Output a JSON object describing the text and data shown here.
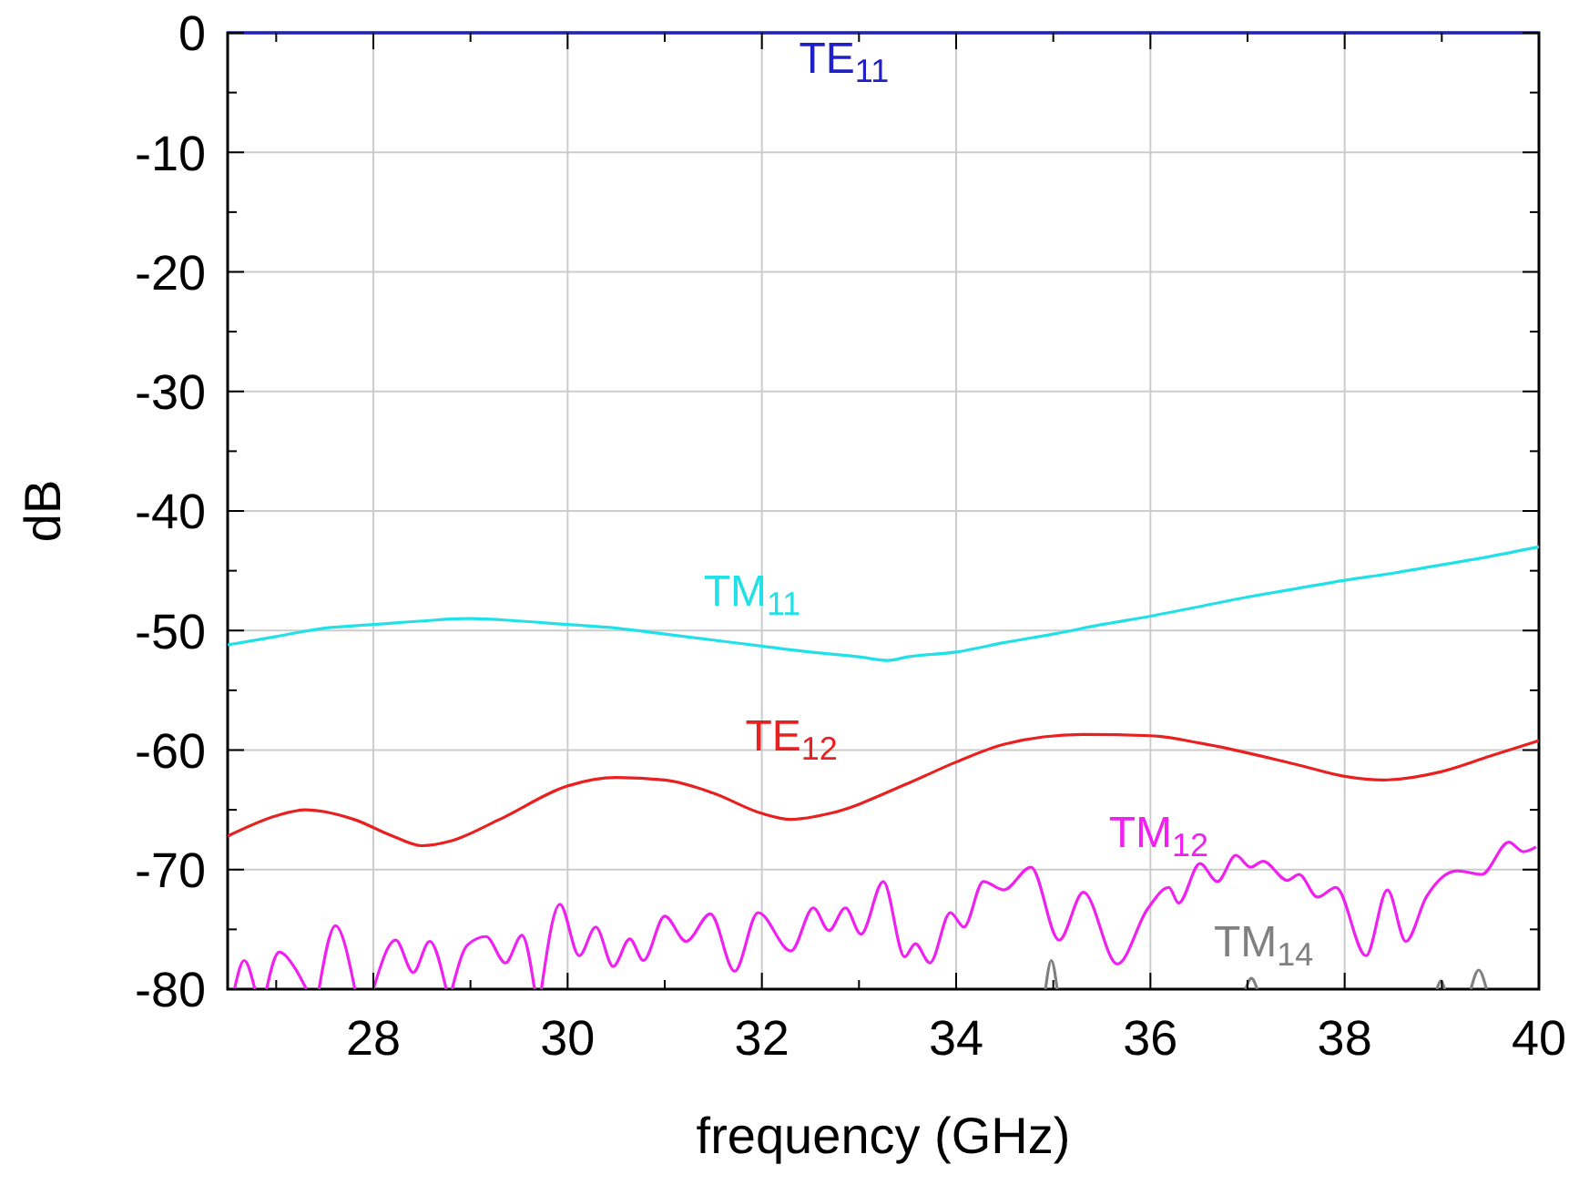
{
  "chart_data": {
    "type": "line",
    "xlabel": "frequency (GHz)",
    "ylabel": "dB",
    "xlim": [
      26.5,
      40
    ],
    "ylim": [
      -80,
      0
    ],
    "xticks": [
      {
        "value": 27,
        "label": null
      },
      28,
      {
        "value": 29,
        "label": null
      },
      30,
      {
        "value": 31,
        "label": null
      },
      32,
      {
        "value": 33,
        "label": null
      },
      34,
      {
        "value": 35,
        "label": null
      },
      36,
      {
        "value": 37,
        "label": null
      },
      38,
      {
        "value": 39,
        "label": null
      },
      40
    ],
    "yticks": [
      -80,
      {
        "value": -75,
        "label": null
      },
      -70,
      {
        "value": -65,
        "label": null
      },
      -60,
      {
        "value": -55,
        "label": null
      },
      -50,
      {
        "value": -45,
        "label": null
      },
      -40,
      {
        "value": -35,
        "label": null
      },
      -30,
      {
        "value": -25,
        "label": null
      },
      -20,
      {
        "value": -15,
        "label": null
      },
      -10,
      {
        "value": -5,
        "label": null
      },
      0
    ],
    "grid": true,
    "marker": "none",
    "line_style": "solid",
    "series": [
      {
        "name": "TE$_{11}$",
        "color": "#2020c8",
        "x": [
          26.5,
          40
        ],
        "values": [
          0,
          0
        ]
      },
      {
        "name": "TM$_{11}$",
        "color": "#20e0e8",
        "x": [
          26.5,
          27,
          27.5,
          28,
          28.5,
          29,
          29.5,
          30,
          30.5,
          31,
          31.5,
          32,
          32.5,
          33,
          33.3,
          33.5,
          34,
          34.5,
          35,
          35.5,
          36,
          36.5,
          37,
          37.5,
          38,
          38.5,
          39,
          39.5,
          40
        ],
        "values": [
          -51.2,
          -50.5,
          -49.8,
          -49.5,
          -49.2,
          -49.0,
          -49.2,
          -49.5,
          -49.8,
          -50.3,
          -50.8,
          -51.3,
          -51.8,
          -52.2,
          -52.5,
          -52.2,
          -51.8,
          -51.0,
          -50.3,
          -49.5,
          -48.8,
          -48.0,
          -47.2,
          -46.5,
          -45.8,
          -45.2,
          -44.5,
          -43.8,
          -43.0
        ]
      },
      {
        "name": "TE$_{12}$",
        "color": "#e82020",
        "x": [
          26.5,
          27,
          27.3,
          27.8,
          28.2,
          28.5,
          28.8,
          29.3,
          30,
          30.5,
          31,
          31.5,
          32,
          32.3,
          32.7,
          33.5,
          34,
          34.5,
          35.3,
          36,
          36.5,
          37.5,
          38,
          38.4,
          39,
          39.5,
          40
        ],
        "values": [
          -67.2,
          -65.5,
          -65.0,
          -65.8,
          -67.2,
          -68.0,
          -67.6,
          -65.8,
          -63.0,
          -62.3,
          -62.5,
          -63.6,
          -65.3,
          -65.8,
          -65.3,
          -62.8,
          -61.0,
          -59.5,
          -58.7,
          -58.8,
          -59.4,
          -61.2,
          -62.2,
          -62.5,
          -61.8,
          -60.5,
          -59.2
        ]
      },
      {
        "name": "TM$_{12}$",
        "color": "#f020f0",
        "x": [
          26.57,
          26.67,
          26.78,
          26.84,
          26.9,
          27.03,
          27.19,
          27.31,
          27.38,
          27.44,
          27.61,
          27.81,
          27.9,
          28.0,
          28.23,
          28.41,
          28.58,
          28.75,
          28.78,
          28.81,
          28.97,
          29.16,
          29.36,
          29.53,
          29.66,
          29.7,
          29.73,
          29.92,
          30.12,
          30.29,
          30.47,
          30.64,
          30.78,
          31.0,
          31.22,
          31.47,
          31.72,
          31.96,
          32.3,
          32.53,
          32.69,
          32.86,
          33.02,
          33.25,
          33.47,
          33.58,
          33.73,
          33.94,
          34.08,
          34.28,
          34.49,
          34.77,
          35.06,
          35.31,
          35.66,
          35.97,
          36.19,
          36.29,
          36.51,
          36.69,
          36.88,
          37.03,
          37.16,
          37.41,
          37.53,
          37.72,
          37.91,
          38.22,
          38.44,
          38.63,
          38.84,
          39.16,
          39.41,
          39.69,
          39.84,
          39.97
        ],
        "values": [
          -80,
          -77.6,
          -80,
          null,
          -80,
          -76.9,
          -78.2,
          -80,
          null,
          -80,
          -74.7,
          -80,
          null,
          -80,
          -75.9,
          -78.6,
          -76.0,
          -80,
          null,
          -80,
          -76.3,
          -75.6,
          -77.8,
          -75.5,
          -80,
          null,
          -80,
          -72.9,
          -77.2,
          -74.8,
          -78.1,
          -75.8,
          -77.6,
          -73.9,
          -76.0,
          -73.7,
          -78.5,
          -73.6,
          -76.8,
          -73.2,
          -75.1,
          -73.2,
          -75.4,
          -71.0,
          -77.3,
          -76.2,
          -77.8,
          -73.6,
          -74.8,
          -71.0,
          -71.7,
          -69.8,
          -75.9,
          -71.9,
          -77.9,
          -73.3,
          -71.5,
          -72.8,
          -69.5,
          -71.0,
          -68.8,
          -69.8,
          -69.3,
          -70.9,
          -70.4,
          -72.3,
          -71.5,
          -77.2,
          -71.7,
          -76.0,
          -72.3,
          -70.1,
          -70.4,
          -67.7,
          -68.5,
          -68.1
        ]
      },
      {
        "name": "TM$_{14}$",
        "color": "#808080",
        "x": [
          34.92,
          34.98,
          35.04,
          36.0,
          36.98,
          37.04,
          37.1,
          38.0,
          38.95,
          38.99,
          39.03,
          39.2,
          39.3,
          39.38,
          39.46
        ],
        "values": [
          -80,
          -77.6,
          -80,
          null,
          -80,
          -79.1,
          -80,
          null,
          -80,
          -79.3,
          -80,
          null,
          -80,
          -78.4,
          -80
        ]
      }
    ]
  }
}
